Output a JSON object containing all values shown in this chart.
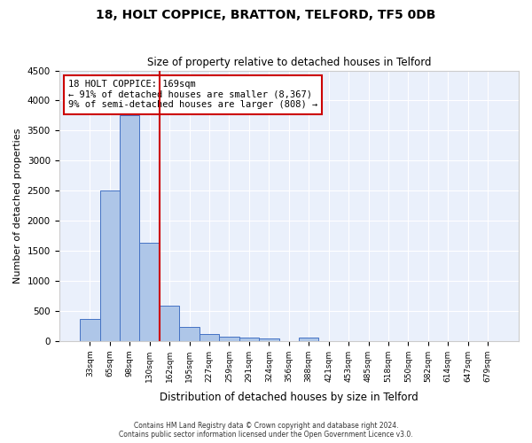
{
  "title": "18, HOLT COPPICE, BRATTON, TELFORD, TF5 0DB",
  "subtitle": "Size of property relative to detached houses in Telford",
  "xlabel": "Distribution of detached houses by size in Telford",
  "ylabel": "Number of detached properties",
  "bar_values": [
    370,
    2500,
    3750,
    1640,
    590,
    230,
    110,
    70,
    50,
    40,
    0,
    60,
    0,
    0,
    0,
    0,
    0,
    0,
    0,
    0,
    0
  ],
  "categories": [
    "33sqm",
    "65sqm",
    "98sqm",
    "130sqm",
    "162sqm",
    "195sqm",
    "227sqm",
    "259sqm",
    "291sqm",
    "324sqm",
    "356sqm",
    "388sqm",
    "421sqm",
    "453sqm",
    "485sqm",
    "518sqm",
    "550sqm",
    "582sqm",
    "614sqm",
    "647sqm",
    "679sqm"
  ],
  "bar_color": "#aec6e8",
  "bar_edge_color": "#4472c4",
  "background_color": "#eaf0fb",
  "annotation_box_color": "#cc0000",
  "vline_x_index": 4,
  "vline_color": "#cc0000",
  "ylim": [
    0,
    4500
  ],
  "yticks": [
    0,
    500,
    1000,
    1500,
    2000,
    2500,
    3000,
    3500,
    4000,
    4500
  ],
  "annotation_lines": [
    "18 HOLT COPPICE: 169sqm",
    "← 91% of detached houses are smaller (8,367)",
    "9% of semi-detached houses are larger (808) →"
  ],
  "footer1": "Contains HM Land Registry data © Crown copyright and database right 2024.",
  "footer2": "Contains public sector information licensed under the Open Government Licence v3.0.",
  "figsize": [
    6.0,
    5.0
  ],
  "dpi": 100
}
